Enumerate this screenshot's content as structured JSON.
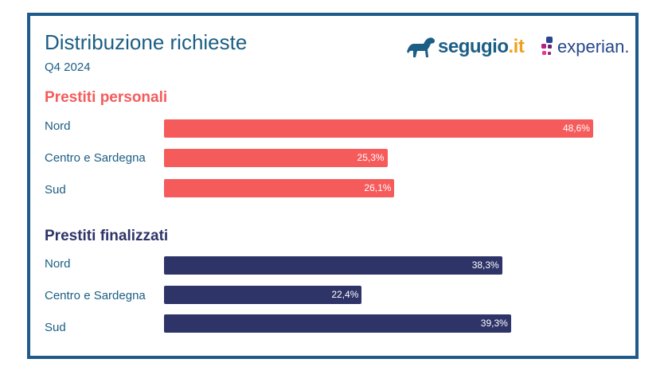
{
  "header": {
    "title": "Distribuzione richieste",
    "period": "Q4 2024"
  },
  "logos": {
    "segugio_name": "segugio",
    "segugio_suffix": ".it",
    "experian": "experian."
  },
  "colors": {
    "frame": "#1f5a8c",
    "personali": "#f65b5b",
    "finalizzati": "#2e3468",
    "label_text": "#1b5e85"
  },
  "chart_data": [
    {
      "type": "bar",
      "orientation": "horizontal",
      "title": "Prestiti personali",
      "categories": [
        "Nord",
        "Centro e Sardegna",
        "Sud"
      ],
      "values": [
        48.6,
        25.3,
        26.1
      ],
      "value_labels": [
        "48,6%",
        "25,3%",
        "26,1%"
      ],
      "unit": "%",
      "xlim": [
        0,
        50
      ]
    },
    {
      "type": "bar",
      "orientation": "horizontal",
      "title": "Prestiti finalizzati",
      "categories": [
        "Nord",
        "Centro e Sardegna",
        "Sud"
      ],
      "values": [
        38.3,
        22.4,
        39.3
      ],
      "value_labels": [
        "38,3%",
        "22,4%",
        "39,3%"
      ],
      "unit": "%",
      "xlim": [
        0,
        50
      ]
    }
  ]
}
